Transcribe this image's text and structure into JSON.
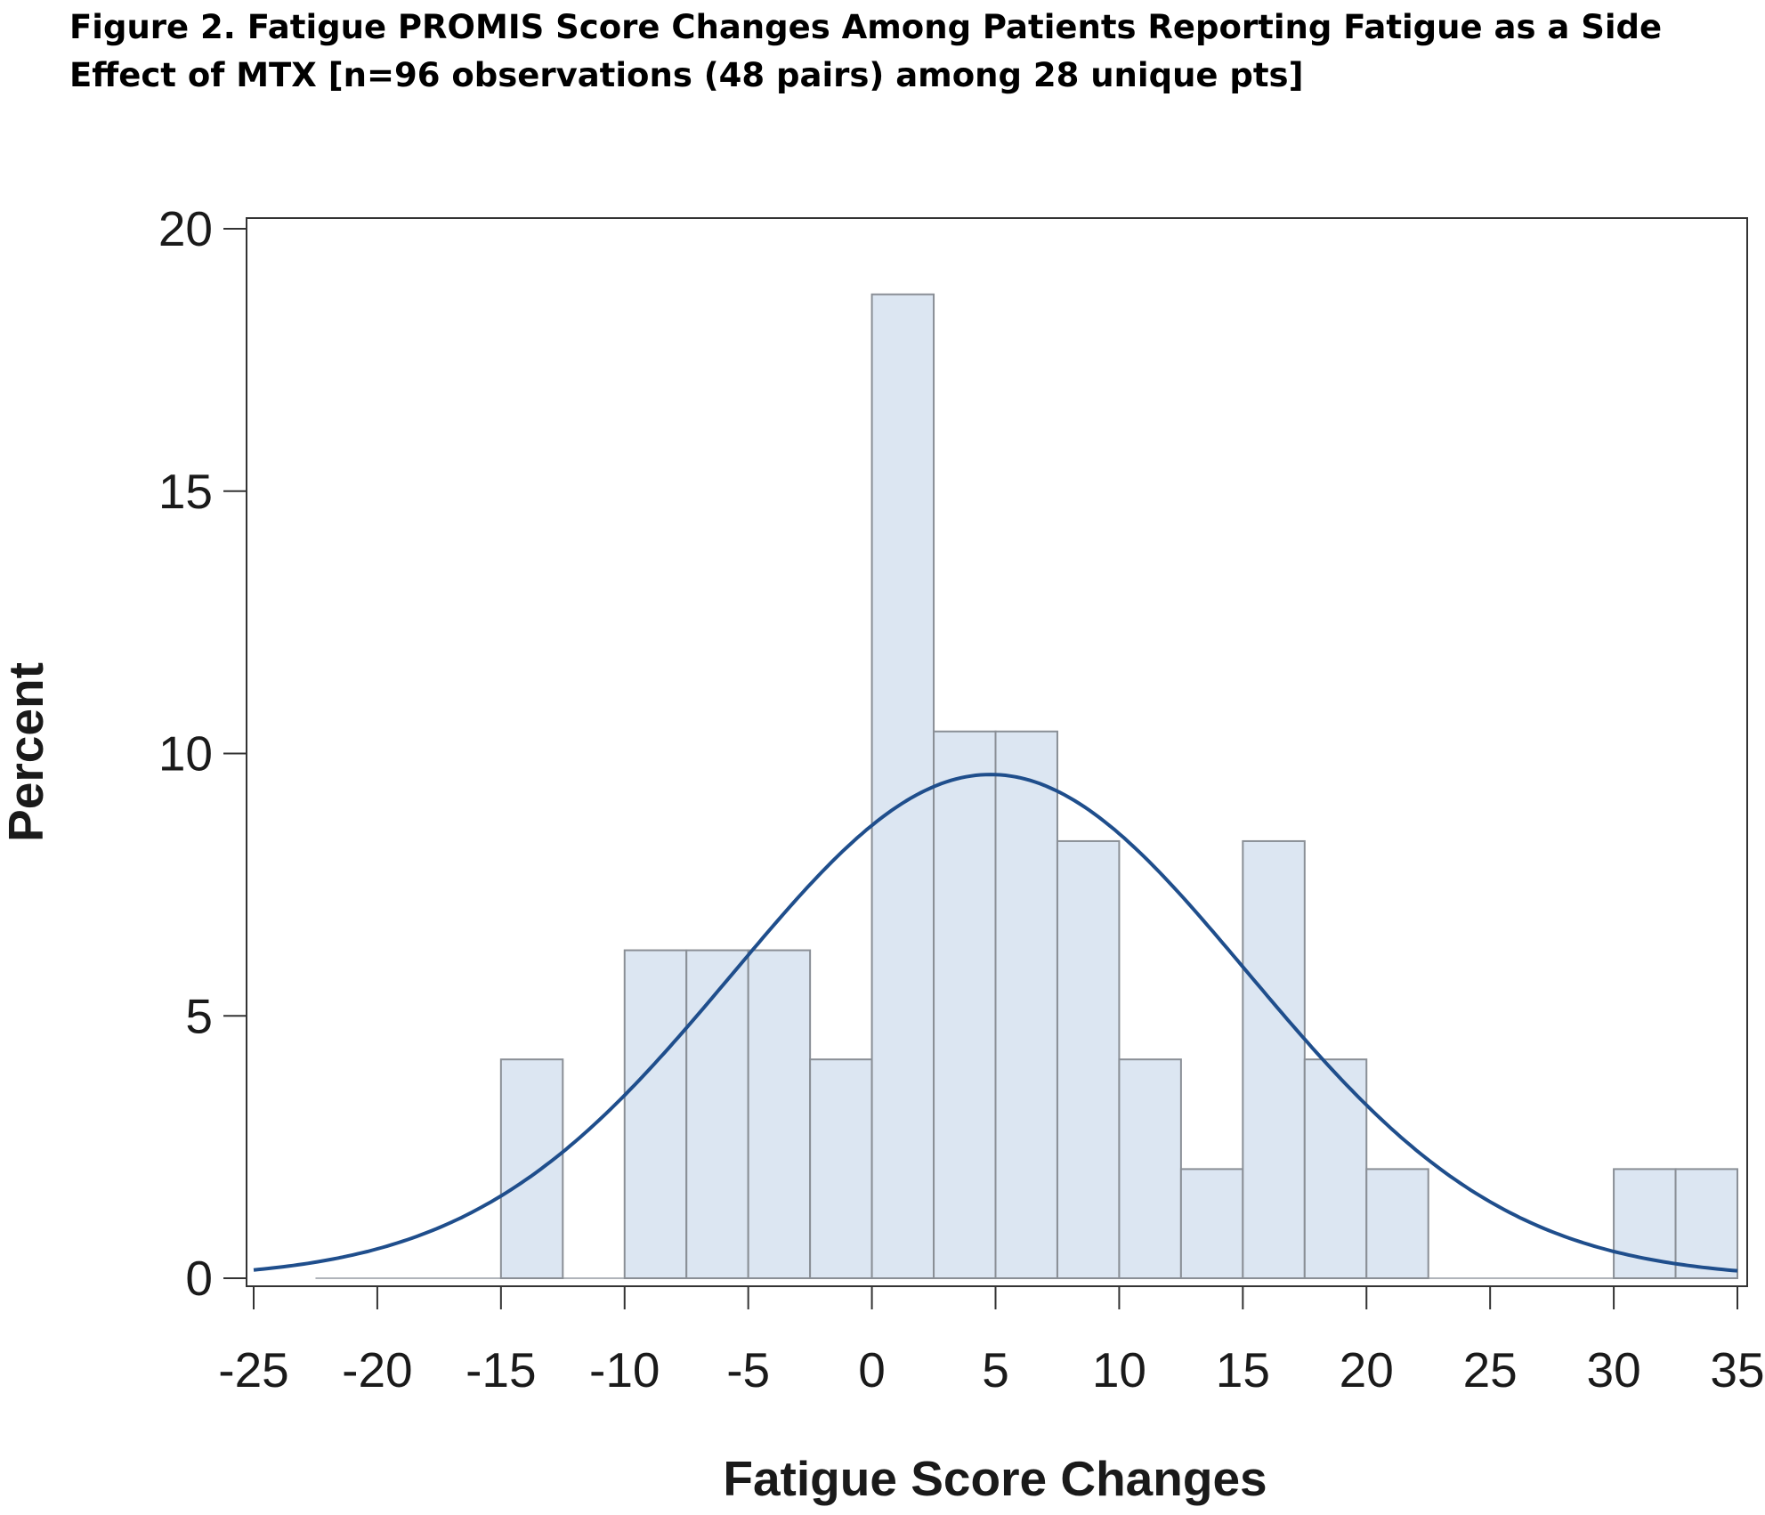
{
  "chart_data": {
    "type": "histogram",
    "title": "Figure 2. Fatigue PROMIS Score Changes Among Patients Reporting Fatigue as a Side Effect of MTX [n=96 observations (48 pairs) among 28 unique pts]",
    "xlabel": "Fatigue Score Changes",
    "ylabel": "Percent",
    "xlim": [
      -25,
      35
    ],
    "ylim": [
      0,
      20
    ],
    "x_ticks": [
      -25,
      -20,
      -15,
      -10,
      -5,
      0,
      5,
      10,
      15,
      20,
      25,
      30,
      35
    ],
    "y_ticks": [
      0,
      5,
      10,
      15,
      20
    ],
    "bin_width": 2.5,
    "bins": [
      {
        "start": -15,
        "end": -12.5,
        "value": 4.17
      },
      {
        "start": -10,
        "end": -7.5,
        "value": 6.25
      },
      {
        "start": -7.5,
        "end": -5,
        "value": 6.25
      },
      {
        "start": -5,
        "end": -2.5,
        "value": 6.25
      },
      {
        "start": -2.5,
        "end": 0,
        "value": 4.17
      },
      {
        "start": 0,
        "end": 2.5,
        "value": 18.75
      },
      {
        "start": 2.5,
        "end": 5,
        "value": 10.42
      },
      {
        "start": 5,
        "end": 7.5,
        "value": 10.42
      },
      {
        "start": 7.5,
        "end": 10,
        "value": 8.33
      },
      {
        "start": 10,
        "end": 12.5,
        "value": 4.17
      },
      {
        "start": 12.5,
        "end": 15,
        "value": 2.08
      },
      {
        "start": 15,
        "end": 17.5,
        "value": 8.33
      },
      {
        "start": 17.5,
        "end": 20,
        "value": 4.17
      },
      {
        "start": 20,
        "end": 22.5,
        "value": 2.08
      },
      {
        "start": 30,
        "end": 32.5,
        "value": 2.08
      },
      {
        "start": 32.5,
        "end": 35,
        "value": 2.08
      }
    ],
    "normal_curve": {
      "mean": 4.8,
      "sd": 10.4,
      "peak_percent": 9.6
    },
    "grid": false,
    "colors": {
      "bar_fill": "#dce6f2",
      "bar_stroke": "#8a8f96",
      "curve": "#1f4e8c",
      "frame": "#333333"
    }
  }
}
